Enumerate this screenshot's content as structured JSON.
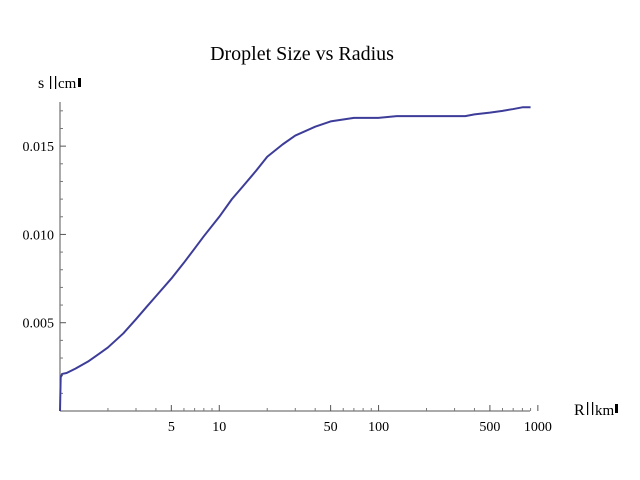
{
  "chart_data": {
    "type": "line",
    "title": "Droplet Size vs Radius",
    "ylabel": "s",
    "ylabel_unit_glyph": "cm",
    "xlabel": "R",
    "xlabel_unit_glyph": "km",
    "x_scale": "log",
    "xlim": [
      1,
      1300
    ],
    "ylim": [
      0,
      0.0175
    ],
    "x_ticks": [
      {
        "value": 5,
        "label": "5"
      },
      {
        "value": 10,
        "label": "10"
      },
      {
        "value": 50,
        "label": "50"
      },
      {
        "value": 100,
        "label": "100"
      },
      {
        "value": 500,
        "label": "500"
      },
      {
        "value": 1000,
        "label": "1000"
      }
    ],
    "x_minor_ticks": [
      2,
      3,
      4,
      6,
      7,
      8,
      9,
      20,
      30,
      40,
      60,
      70,
      80,
      90,
      200,
      300,
      400,
      600,
      700,
      800,
      900
    ],
    "y_ticks": [
      {
        "value": 0.005,
        "label": "0.005"
      },
      {
        "value": 0.01,
        "label": "0.010"
      },
      {
        "value": 0.015,
        "label": "0.015"
      }
    ],
    "y_minor_ticks": [
      0.001,
      0.002,
      0.003,
      0.004,
      0.006,
      0.007,
      0.008,
      0.009,
      0.011,
      0.012,
      0.013,
      0.014,
      0.016,
      0.017
    ],
    "grid": false,
    "legend": "none",
    "series": [
      {
        "color": "#3d3d99",
        "points": [
          [
            1.0,
            0.0
          ],
          [
            1.01,
            0.0019
          ],
          [
            1.03,
            0.0021
          ],
          [
            1.1,
            0.00215
          ],
          [
            1.25,
            0.0024
          ],
          [
            1.5,
            0.0028
          ],
          [
            1.8,
            0.0033
          ],
          [
            2.0,
            0.0036
          ],
          [
            2.5,
            0.0044
          ],
          [
            3.0,
            0.0052
          ],
          [
            3.5,
            0.0059
          ],
          [
            4.0,
            0.0065
          ],
          [
            5.0,
            0.0075
          ],
          [
            6.0,
            0.0084
          ],
          [
            7.0,
            0.0092
          ],
          [
            8.0,
            0.0099
          ],
          [
            10.0,
            0.011
          ],
          [
            12.0,
            0.012
          ],
          [
            14.0,
            0.0127
          ],
          [
            17.0,
            0.0136
          ],
          [
            20.0,
            0.0144
          ],
          [
            25.0,
            0.0151
          ],
          [
            30.0,
            0.0156
          ],
          [
            40.0,
            0.0161
          ],
          [
            50.0,
            0.0164
          ],
          [
            70.0,
            0.0166
          ],
          [
            100.0,
            0.0166
          ],
          [
            130.0,
            0.0167
          ],
          [
            200.0,
            0.0167
          ],
          [
            350.0,
            0.0167
          ],
          [
            400.0,
            0.0168
          ],
          [
            500.0,
            0.0169
          ],
          [
            600.0,
            0.017
          ],
          [
            700.0,
            0.0171
          ],
          [
            800.0,
            0.0172
          ],
          [
            900.0,
            0.0172
          ]
        ]
      }
    ]
  }
}
